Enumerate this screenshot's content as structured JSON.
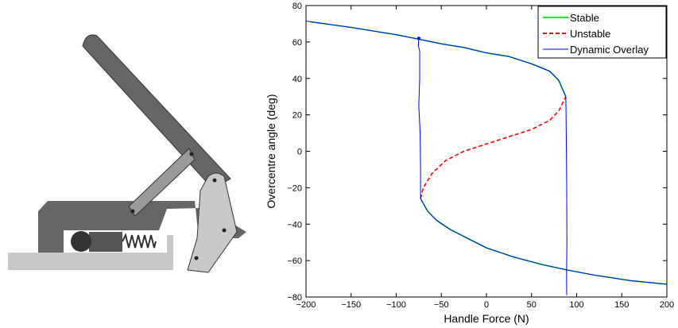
{
  "illustration": {
    "colors": {
      "dark": "#666666",
      "mid": "#9a9a9a",
      "light": "#c8c8c8",
      "outline": "#333333"
    }
  },
  "chart_data": {
    "type": "line",
    "xlabel": "Handle Force (N)",
    "ylabel": "Overcentre angle (deg)",
    "xlim": [
      -200,
      200
    ],
    "ylim": [
      -80,
      80
    ],
    "xticks": [
      -200,
      -150,
      -100,
      -50,
      0,
      50,
      100,
      150,
      200
    ],
    "yticks": [
      -80,
      -60,
      -40,
      -20,
      0,
      20,
      40,
      60,
      80
    ],
    "grid": false,
    "legend_position": "top-right",
    "legend": [
      {
        "label": "Stable",
        "color": "#00ff00",
        "style": "solid"
      },
      {
        "label": "Unstable",
        "color": "#ff0000",
        "style": "dashed"
      },
      {
        "label": "Dynamic Overlay",
        "color": "#0000ff",
        "style": "solid"
      }
    ],
    "series": [
      {
        "name": "Stable",
        "color": "#00ff00",
        "style": "solid",
        "branches": [
          {
            "x": [
              -195,
              -150,
              -100,
              -75,
              -50,
              -25,
              0,
              25,
              50,
              70,
              80,
              88
            ],
            "y": [
              71,
              68,
              64,
              61.5,
              59,
              57,
              54,
              52,
              48,
              44,
              39,
              30
            ]
          },
          {
            "x": [
              -73,
              -65,
              -55,
              -40,
              -20,
              0,
              30,
              60,
              88,
              120,
              160,
              200
            ],
            "y": [
              -26,
              -33,
              -38,
              -43,
              -48,
              -53,
              -58,
              -62,
              -65,
              -68,
              -71,
              -73
            ]
          }
        ]
      },
      {
        "name": "Unstable",
        "color": "#ff0000",
        "style": "dashed",
        "branches": [
          {
            "x": [
              -73,
              -70,
              -60,
              -45,
              -25,
              0,
              25,
              50,
              70,
              80,
              88
            ],
            "y": [
              -26,
              -20,
              -12,
              -5,
              0,
              4,
              8,
              12,
              17,
              22,
              30
            ]
          }
        ]
      },
      {
        "name": "Dynamic Overlay",
        "color": "#0000ff",
        "style": "solid",
        "branches": [
          {
            "x": [
              -200,
              -150,
              -100,
              -75,
              -50,
              -25,
              0,
              25,
              50,
              70,
              80,
              88
            ],
            "y": [
              71.5,
              68,
              64,
              61.5,
              59,
              57,
              54,
              52,
              48,
              44,
              39,
              30
            ]
          },
          {
            "x": [
              -75,
              -75.5,
              -74,
              -74,
              -75,
              -73.5,
              -73,
              -73
            ],
            "y": [
              62,
              58,
              55,
              40,
              25,
              10,
              -10,
              -26
            ]
          },
          {
            "x": [
              -73,
              -65,
              -55,
              -40,
              -20,
              0,
              30,
              60,
              88,
              120,
              160,
              200
            ],
            "y": [
              -26,
              -33,
              -38,
              -43,
              -48,
              -53,
              -58,
              -62,
              -65,
              -68,
              -71,
              -73
            ]
          },
          {
            "x": [
              88,
              88.5,
              89,
              89.2,
              88.8,
              89
            ],
            "y": [
              30,
              10,
              -20,
              -50,
              -70,
              -79
            ]
          }
        ]
      }
    ]
  }
}
